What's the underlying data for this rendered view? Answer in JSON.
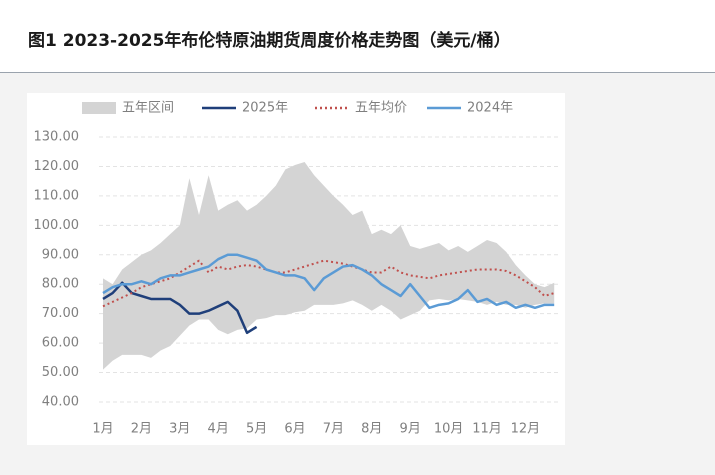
{
  "chart_data": {
    "type": "line",
    "title": "图1  2023-2025年布伦特原油期货周度价格走势图（美元/桶）",
    "categories": [
      "1月",
      null,
      null,
      null,
      "2月",
      null,
      null,
      null,
      "3月",
      null,
      null,
      null,
      "4月",
      null,
      null,
      null,
      "5月",
      null,
      null,
      null,
      "6月",
      null,
      null,
      null,
      "7月",
      null,
      null,
      null,
      "8月",
      null,
      null,
      null,
      "9月",
      null,
      null,
      null,
      "10月",
      null,
      null,
      null,
      "11月",
      null,
      null,
      null,
      "12月",
      null,
      null,
      null
    ],
    "ylim": [
      40,
      130
    ],
    "yticks": [
      {
        "value": 40,
        "label": "40.00"
      },
      {
        "value": 50,
        "label": "50.00"
      },
      {
        "value": 60,
        "label": "60.00"
      },
      {
        "value": 70,
        "label": "70.00"
      },
      {
        "value": 80,
        "label": "80.00"
      },
      {
        "value": 90,
        "label": "90.00"
      },
      {
        "value": 100,
        "label": "100.00"
      },
      {
        "value": 110,
        "label": "110.00"
      },
      {
        "value": 120,
        "label": "120.00"
      },
      {
        "value": 130,
        "label": "130.00"
      }
    ],
    "grid": true,
    "legend": "top",
    "series": [
      {
        "name": "五年区间",
        "type": "band",
        "color": "#d4d4d4",
        "high": [
          82,
          80,
          85,
          87.5,
          90,
          91.5,
          94,
          97,
          100,
          116,
          103.5,
          117,
          105,
          107,
          108.5,
          105,
          107,
          110,
          113.5,
          119,
          120.5,
          121.5,
          117,
          113.5,
          110,
          107,
          103.5,
          105,
          97,
          98.5,
          97,
          100,
          93,
          92,
          93,
          94,
          91.5,
          93,
          91,
          93,
          95,
          94,
          91,
          86.5,
          83,
          80,
          79,
          80.5
        ],
        "low": [
          51,
          54,
          56,
          56,
          56,
          55,
          57.5,
          59,
          62.5,
          66,
          68,
          68,
          64.5,
          63,
          64.5,
          65,
          68,
          68.5,
          69.5,
          69.5,
          70.5,
          71,
          73,
          73,
          73,
          73.5,
          74.5,
          73,
          71,
          73,
          71,
          68,
          69.5,
          71,
          74.5,
          75,
          74.5,
          75,
          74.5,
          74,
          73,
          74,
          73,
          73,
          72,
          73,
          73.5,
          73.5
        ]
      },
      {
        "name": "2025年",
        "color": "#1f3f7a",
        "values": [
          75,
          77,
          80.5,
          77,
          76,
          75,
          75,
          75,
          73,
          70,
          70,
          71,
          72.5,
          74,
          71,
          63.5,
          65.5,
          null,
          null,
          null,
          null,
          null,
          null,
          null,
          null,
          null,
          null,
          null,
          null,
          null,
          null,
          null,
          null,
          null,
          null,
          null,
          null,
          null,
          null,
          null,
          null,
          null,
          null,
          null,
          null,
          null,
          null,
          null
        ]
      },
      {
        "name": "五年均价",
        "color": "#c0504d",
        "dash": true,
        "values": [
          72.5,
          74,
          75.5,
          77,
          79,
          80,
          81,
          82,
          84,
          86,
          88,
          84,
          86,
          85,
          86,
          86.5,
          86,
          85,
          84,
          84,
          85,
          86,
          87,
          88,
          87.5,
          87,
          86,
          85,
          84,
          84,
          86,
          84,
          83,
          82.5,
          82,
          83,
          83.5,
          84,
          84.5,
          85,
          85,
          85,
          84.5,
          83,
          81,
          79,
          76,
          77
        ]
      },
      {
        "name": "2024年",
        "color": "#5b9bd5",
        "values": [
          77,
          79,
          80,
          80,
          81,
          80,
          82,
          83,
          83,
          84,
          85,
          86,
          88.5,
          90,
          90,
          89,
          88,
          85,
          84,
          83,
          83,
          82,
          78,
          82,
          84,
          86,
          86.5,
          85,
          83,
          80,
          78,
          76,
          80,
          76,
          72,
          73,
          73.5,
          75,
          78,
          74,
          75,
          73,
          74,
          72,
          73,
          72,
          73,
          73
        ]
      }
    ]
  }
}
